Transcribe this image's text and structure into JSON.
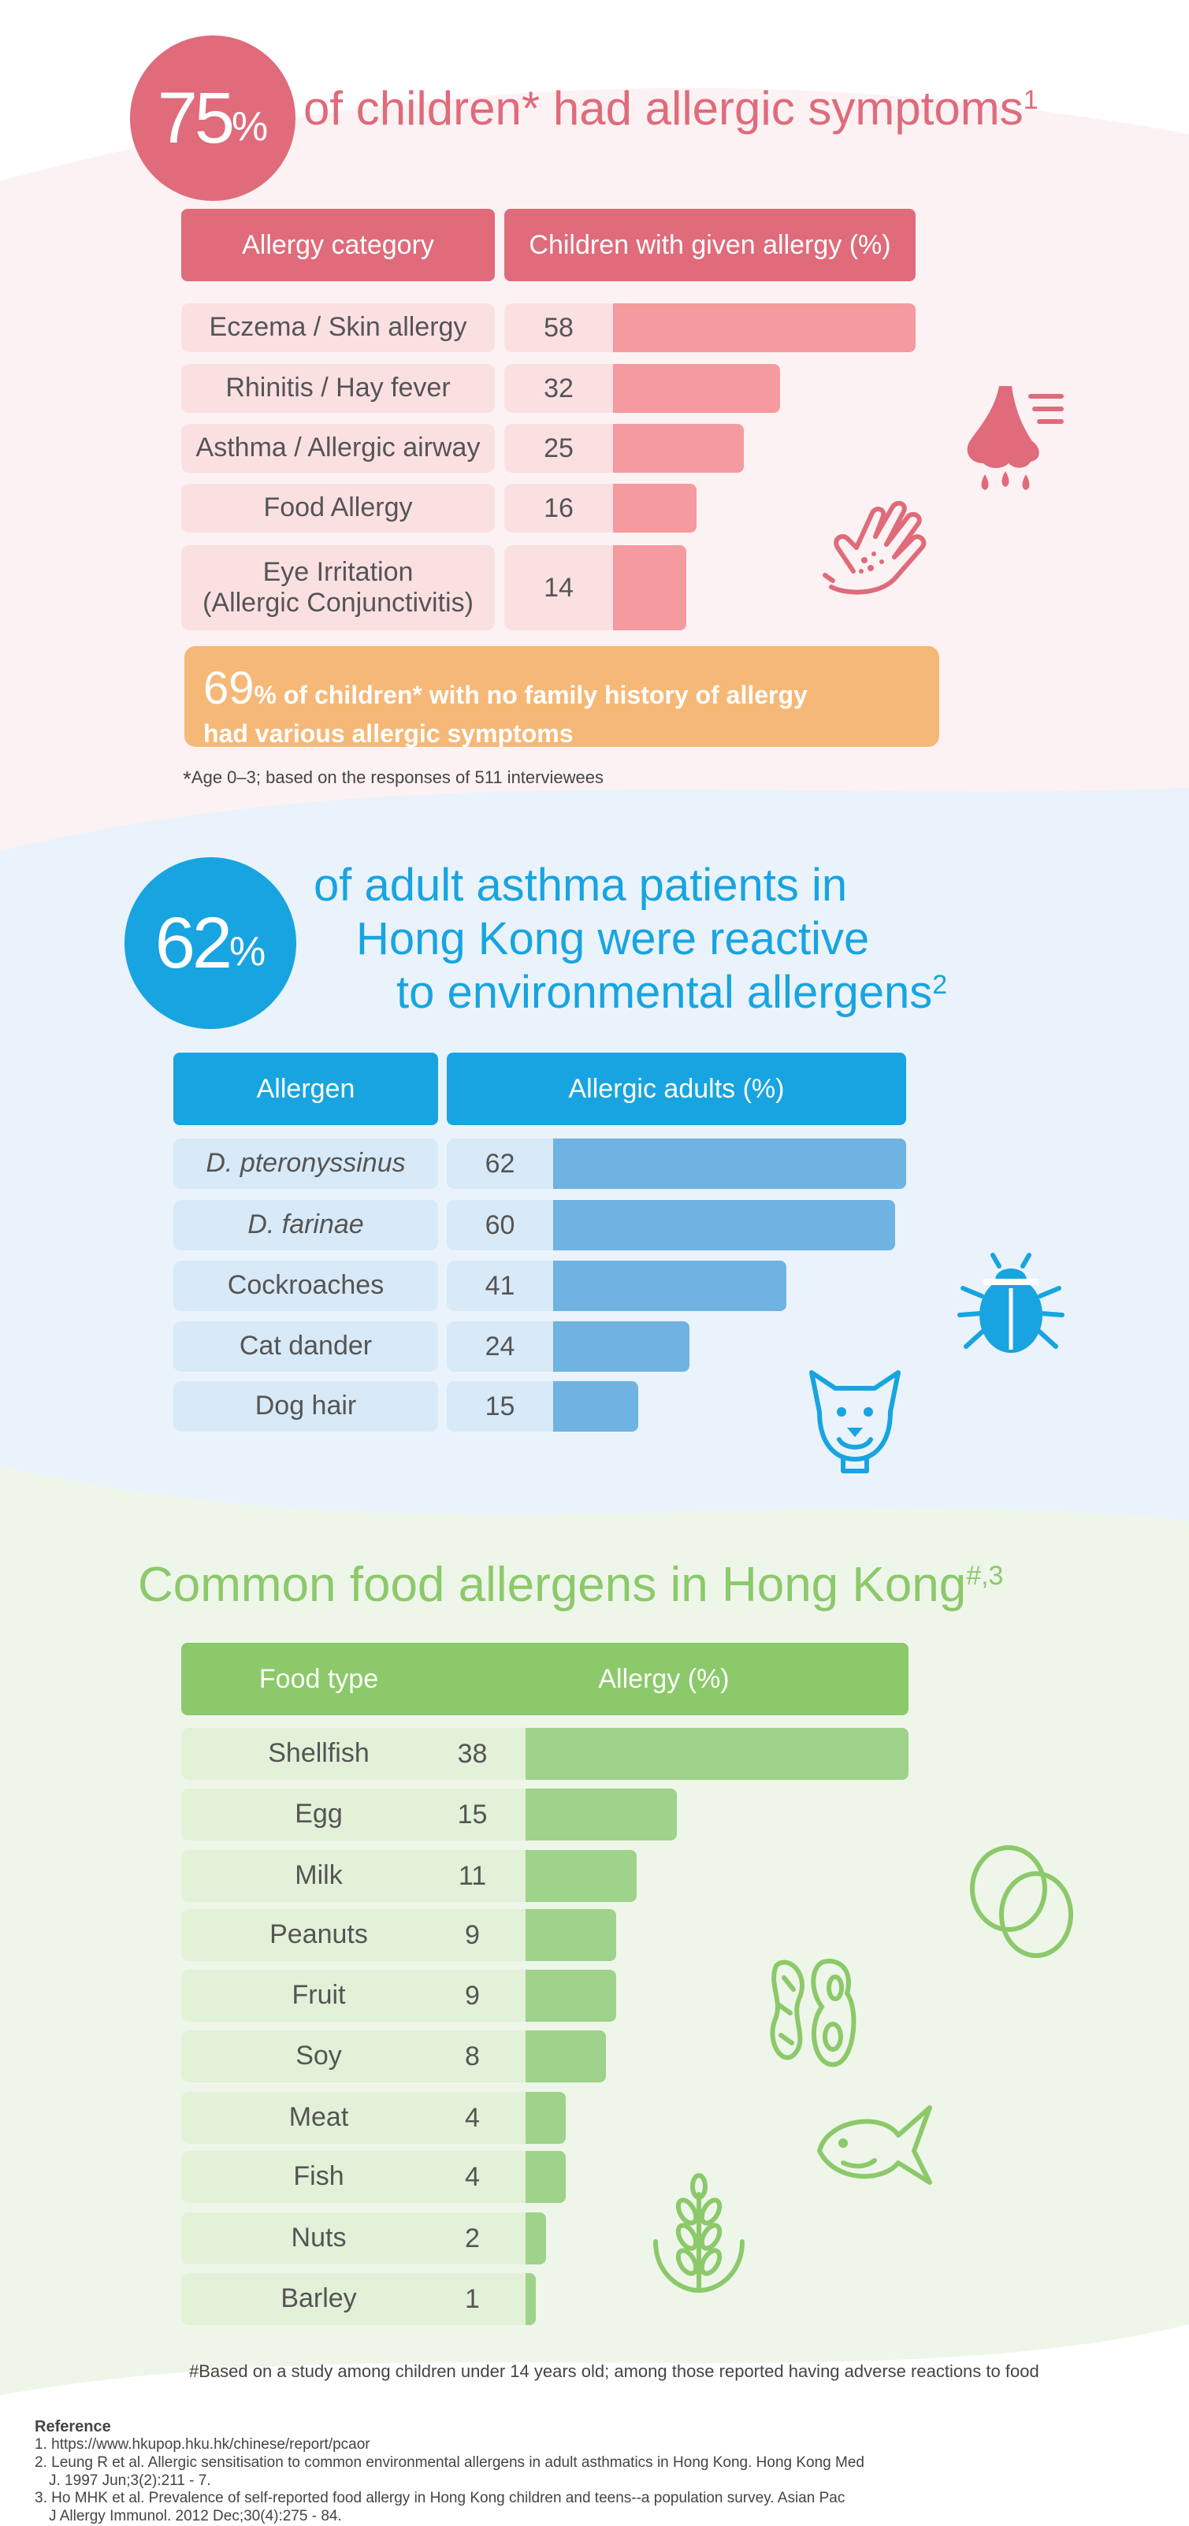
{
  "colors": {
    "red": "#df6b7b",
    "red_bar": "#f59a9f",
    "red_label": "#fbe0e2",
    "blue": "#18a4e0",
    "blue_bar": "#6fb3e3",
    "blue_label": "#d8e9f7",
    "green": "#8cc96a",
    "green_bar": "#9fd28a",
    "green_label": "#e2f1d8",
    "orange": "#f6b877"
  },
  "section1": {
    "circle_num": "75",
    "circle_pct": "%",
    "headline": "of children* had allergic symptoms",
    "headline_sup": "1",
    "banner_big": "69",
    "banner_line1": "% of children* with no family history of allergy",
    "banner_line2": "had various allergic symptoms",
    "footnote_mark": "*",
    "footnote": "Age 0–3; based on the responses of 511 interviewees",
    "icons": [
      "nose-icon",
      "hand-rash-icon"
    ]
  },
  "section2": {
    "circle_num": "62",
    "circle_pct": "%",
    "headline_line1": "of adult asthma patients in",
    "headline_line2": "Hong Kong were reactive",
    "headline_line3": "to environmental allergens",
    "headline_sup": "2",
    "icons": [
      "beetle-icon",
      "dog-icon"
    ]
  },
  "section3": {
    "headline": "Common food allergens in Hong Kong",
    "headline_sup": "#,3",
    "footnote": "#Based on a study among children under 14 years old; among those reported having adverse reactions to food",
    "icons": [
      "eggs-icon",
      "peanut-icon",
      "fish-icon",
      "wheat-icon"
    ]
  },
  "references": {
    "title": "Reference",
    "items": [
      "1.  https://www.hkupop.hku.hk/chinese/report/pcaor",
      "2. Leung R et al. Allergic sensitisation to common environmental allergens in adult asthmatics in Hong Kong. Hong Kong Med",
      "    J. 1997 Jun;3(2):211 - 7.",
      "3. Ho MHK  et al. Prevalence of self-reported food allergy in Hong Kong children and teens--a population survey. Asian Pac",
      "    J Allergy Immunol. 2012 Dec;30(4):275 - 84."
    ]
  },
  "chart_data": [
    {
      "type": "bar",
      "header_category": "Allergy category",
      "header_value": "Children with given allergy (%)",
      "categories": [
        "Eczema / Skin allergy",
        "Rhinitis / Hay fever",
        "Asthma / Allergic airway",
        "Food Allergy",
        "Eye Irritation\n(Allergic Conjunctivitis)"
      ],
      "values": [
        58,
        32,
        25,
        16,
        14
      ],
      "xlim": [
        0,
        58
      ]
    },
    {
      "type": "bar",
      "header_category": "Allergen",
      "header_value": "Allergic adults (%)",
      "categories": [
        "D. pteronyssinus",
        "D. farinae",
        "Cockroaches",
        "Cat dander",
        "Dog hair"
      ],
      "values": [
        62,
        60,
        41,
        24,
        15
      ],
      "xlim": [
        0,
        62
      ]
    },
    {
      "type": "bar",
      "header_category": "Food type",
      "header_value": "Allergy (%)",
      "categories": [
        "Shellfish",
        "Egg",
        "Milk",
        "Peanuts",
        "Fruit",
        "Soy",
        "Meat",
        "Fish",
        "Nuts",
        "Barley"
      ],
      "values": [
        38,
        15,
        11,
        9,
        9,
        8,
        4,
        4,
        2,
        1
      ],
      "xlim": [
        0,
        38
      ]
    }
  ]
}
